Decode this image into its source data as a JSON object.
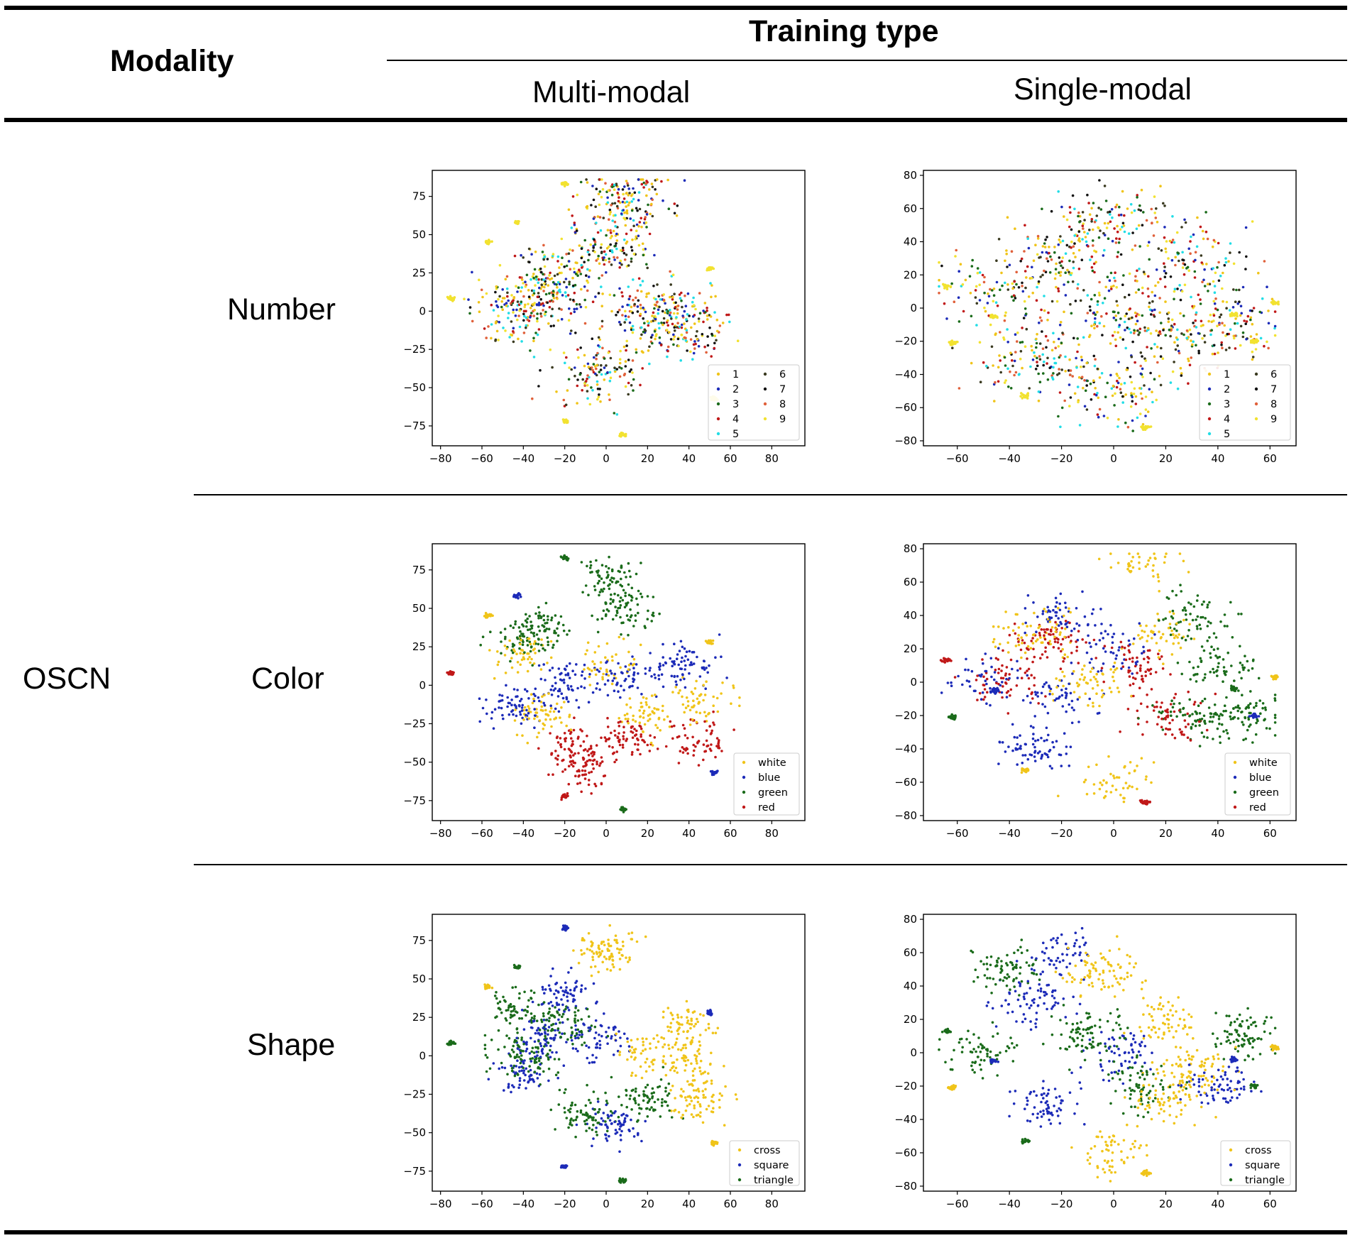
{
  "header": {
    "modality_label": "Modality",
    "training_type_label": "Training type",
    "columns": [
      "Multi-modal",
      "Single-modal"
    ]
  },
  "group_label": "OSCN",
  "rows": [
    "Number",
    "Color",
    "Shape"
  ],
  "chart_data": [
    {
      "type": "scatter",
      "row": "Number",
      "column": "Multi-modal",
      "title": "",
      "xlabel": "",
      "ylabel": "",
      "xlim": [
        -84,
        96
      ],
      "ylim": [
        -88,
        92
      ],
      "xticks": [
        -80,
        -60,
        -40,
        -20,
        0,
        20,
        40,
        60,
        80
      ],
      "yticks": [
        -75,
        -50,
        -25,
        0,
        25,
        50,
        75
      ],
      "legend": {
        "placement": "lower-right",
        "columns": 2
      },
      "series": [
        {
          "name": "1",
          "color": "#f0c419",
          "values": []
        },
        {
          "name": "2",
          "color": "#1c2bb8",
          "values": []
        },
        {
          "name": "3",
          "color": "#1a6b1a",
          "values": []
        },
        {
          "name": "4",
          "color": "#c01818",
          "values": []
        },
        {
          "name": "5",
          "color": "#22dde6",
          "values": []
        },
        {
          "name": "6",
          "color": "#3a3a20",
          "values": []
        },
        {
          "name": "7",
          "color": "#111111",
          "values": []
        },
        {
          "name": "8",
          "color": "#e0603a",
          "values": []
        },
        {
          "name": "9",
          "color": "#f2e230",
          "values": []
        }
      ]
    },
    {
      "type": "scatter",
      "row": "Number",
      "column": "Single-modal",
      "title": "",
      "xlabel": "",
      "ylabel": "",
      "xlim": [
        -73,
        70
      ],
      "ylim": [
        -83,
        83
      ],
      "xticks": [
        -60,
        -40,
        -20,
        0,
        20,
        40,
        60
      ],
      "yticks": [
        -80,
        -60,
        -40,
        -20,
        0,
        20,
        40,
        60,
        80
      ],
      "legend": {
        "placement": "lower-right",
        "columns": 2
      },
      "series": [
        {
          "name": "1",
          "color": "#f0c419",
          "values": []
        },
        {
          "name": "2",
          "color": "#1c2bb8",
          "values": []
        },
        {
          "name": "3",
          "color": "#1a6b1a",
          "values": []
        },
        {
          "name": "4",
          "color": "#c01818",
          "values": []
        },
        {
          "name": "5",
          "color": "#22dde6",
          "values": []
        },
        {
          "name": "6",
          "color": "#3a3a20",
          "values": []
        },
        {
          "name": "7",
          "color": "#111111",
          "values": []
        },
        {
          "name": "8",
          "color": "#e0603a",
          "values": []
        },
        {
          "name": "9",
          "color": "#f2e230",
          "values": []
        }
      ]
    },
    {
      "type": "scatter",
      "row": "Color",
      "column": "Multi-modal",
      "title": "",
      "xlabel": "",
      "ylabel": "",
      "xlim": [
        -84,
        96
      ],
      "ylim": [
        -88,
        92
      ],
      "xticks": [
        -80,
        -60,
        -40,
        -20,
        0,
        20,
        40,
        60,
        80
      ],
      "yticks": [
        -75,
        -50,
        -25,
        0,
        25,
        50,
        75
      ],
      "legend": {
        "placement": "lower-right",
        "columns": 1
      },
      "series": [
        {
          "name": "white",
          "color": "#f0c419",
          "values": []
        },
        {
          "name": "blue",
          "color": "#1c2bb8",
          "values": []
        },
        {
          "name": "green",
          "color": "#1a6b1a",
          "values": []
        },
        {
          "name": "red",
          "color": "#c01818",
          "values": []
        }
      ]
    },
    {
      "type": "scatter",
      "row": "Color",
      "column": "Single-modal",
      "title": "",
      "xlabel": "",
      "ylabel": "",
      "xlim": [
        -73,
        70
      ],
      "ylim": [
        -83,
        83
      ],
      "xticks": [
        -60,
        -40,
        -20,
        0,
        20,
        40,
        60
      ],
      "yticks": [
        -80,
        -60,
        -40,
        -20,
        0,
        20,
        40,
        60,
        80
      ],
      "legend": {
        "placement": "lower-right",
        "columns": 1
      },
      "series": [
        {
          "name": "white",
          "color": "#f0c419",
          "values": []
        },
        {
          "name": "blue",
          "color": "#1c2bb8",
          "values": []
        },
        {
          "name": "green",
          "color": "#1a6b1a",
          "values": []
        },
        {
          "name": "red",
          "color": "#c01818",
          "values": []
        }
      ]
    },
    {
      "type": "scatter",
      "row": "Shape",
      "column": "Multi-modal",
      "title": "",
      "xlabel": "",
      "ylabel": "",
      "xlim": [
        -84,
        96
      ],
      "ylim": [
        -88,
        92
      ],
      "xticks": [
        -80,
        -60,
        -40,
        -20,
        0,
        20,
        40,
        60,
        80
      ],
      "yticks": [
        -75,
        -50,
        -25,
        0,
        25,
        50,
        75
      ],
      "legend": {
        "placement": "lower-right",
        "columns": 1
      },
      "series": [
        {
          "name": "cross",
          "color": "#f0c419",
          "values": []
        },
        {
          "name": "square",
          "color": "#1c2bb8",
          "values": []
        },
        {
          "name": "triangle",
          "color": "#1a6b1a",
          "values": []
        }
      ]
    },
    {
      "type": "scatter",
      "row": "Shape",
      "column": "Single-modal",
      "title": "",
      "xlabel": "",
      "ylabel": "",
      "xlim": [
        -73,
        70
      ],
      "ylim": [
        -83,
        83
      ],
      "xticks": [
        -60,
        -40,
        -20,
        0,
        20,
        40,
        60
      ],
      "yticks": [
        -80,
        -60,
        -40,
        -20,
        0,
        20,
        40,
        60,
        80
      ],
      "legend": {
        "placement": "lower-right",
        "columns": 1
      },
      "series": [
        {
          "name": "cross",
          "color": "#f0c419",
          "values": []
        },
        {
          "name": "square",
          "color": "#1c2bb8",
          "values": []
        },
        {
          "name": "triangle",
          "color": "#1a6b1a",
          "values": []
        }
      ]
    }
  ]
}
